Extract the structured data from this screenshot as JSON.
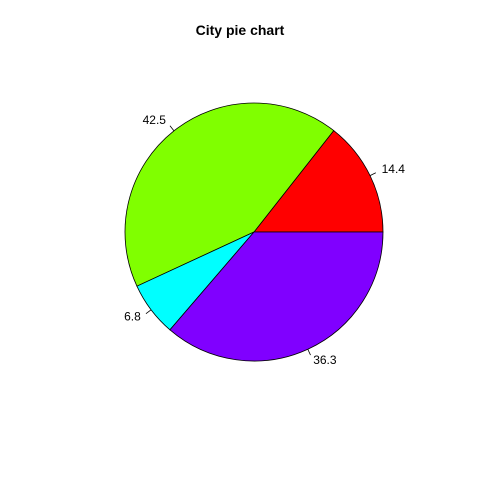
{
  "chart_data": {
    "type": "pie",
    "title": "City pie chart",
    "slices": [
      {
        "label": "14.4",
        "value": 14.4,
        "color": "#FF0000"
      },
      {
        "label": "42.5",
        "value": 42.5,
        "color": "#80FF00"
      },
      {
        "label": "6.8",
        "value": 6.8,
        "color": "#00FFFF"
      },
      {
        "label": "36.3",
        "value": 36.3,
        "color": "#8000FF"
      }
    ],
    "start": "3 o'clock",
    "direction": "counterclockwise"
  }
}
